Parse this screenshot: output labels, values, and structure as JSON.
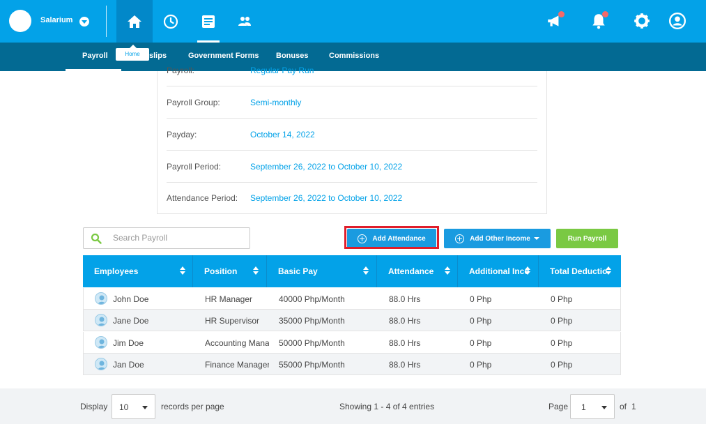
{
  "topbar": {
    "brand": "Salarium",
    "nav": [
      {
        "icon": "home-icon",
        "active": true
      },
      {
        "icon": "clock-icon",
        "active": false
      },
      {
        "icon": "document-icon",
        "active": false
      },
      {
        "icon": "people-icon",
        "active": false
      }
    ],
    "right_icons": [
      "megaphone-icon",
      "bell-icon",
      "gear-icon",
      "user-icon"
    ],
    "tooltip": "Home"
  },
  "subnav": {
    "items": [
      "Payroll",
      "Payslips",
      "Government Forms",
      "Bonuses",
      "Commissions"
    ],
    "visible_payslips_text": "slips"
  },
  "info": {
    "rows": [
      {
        "label": "Payroll:",
        "value": "Regular Pay Run"
      },
      {
        "label": "Payroll Group:",
        "value": "Semi-monthly"
      },
      {
        "label": "Payday:",
        "value": "October 14, 2022"
      },
      {
        "label": "Payroll Period:",
        "value": "September 26, 2022 to October 10, 2022"
      },
      {
        "label": "Attendance Period:",
        "value": "September 26, 2022 to October 10, 2022"
      }
    ]
  },
  "search": {
    "placeholder": "Search Payroll"
  },
  "buttons": {
    "add_attendance": "Add Attendance",
    "add_other_income": "Add Other Income",
    "run_payroll": "Run Payroll"
  },
  "table": {
    "headers": [
      "Employees",
      "Position",
      "Basic Pay",
      "Attendance",
      "Additional Income",
      "Total Deductions"
    ],
    "headers_visible": [
      "Employees",
      "Position",
      "Basic Pay",
      "Attendance",
      "Additional Inco",
      "Total Deductio"
    ],
    "rows": [
      {
        "name": "John Doe",
        "position": "HR Manager",
        "basic_pay": "40000 Php/Month",
        "attendance": "88.0 Hrs",
        "additional": "0 Php",
        "deductions": "0 Php"
      },
      {
        "name": "Jane Doe",
        "position": "HR Supervisor",
        "basic_pay": "35000 Php/Month",
        "attendance": "88.0 Hrs",
        "additional": "0 Php",
        "deductions": "0 Php"
      },
      {
        "name": "Jim Doe",
        "position": "Accounting Mana",
        "basic_pay": "50000 Php/Month",
        "attendance": "88.0 Hrs",
        "additional": "0 Php",
        "deductions": "0 Php"
      },
      {
        "name": "Jan Doe",
        "position": "Finance Manager",
        "basic_pay": "55000 Php/Month",
        "attendance": "88.0 Hrs",
        "additional": "0 Php",
        "deductions": "0 Php"
      }
    ]
  },
  "footer": {
    "display_label": "Display",
    "page_size": "10",
    "records_label": "records per page",
    "showing": "Showing 1 - 4 of 4 entries",
    "page_label": "Page",
    "page": "1",
    "of_label": "of",
    "total_pages": "1"
  },
  "colors": {
    "primary": "#03a2e8",
    "subnav": "#036a93",
    "green": "#7ac943",
    "highlight": "#e01e2b"
  }
}
